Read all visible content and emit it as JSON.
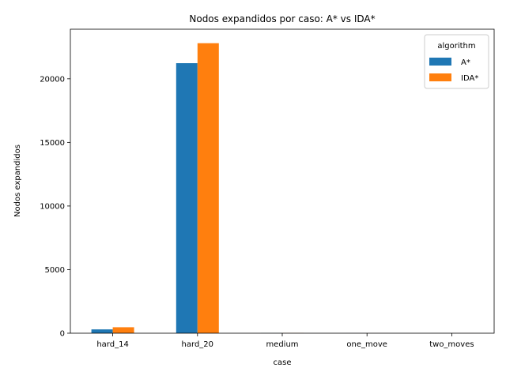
{
  "chart_data": {
    "type": "bar",
    "title": "Nodos expandidos por caso: A* vs IDA*",
    "xlabel": "case",
    "ylabel": "Nodos expandidos",
    "categories": [
      "hard_14",
      "hard_20",
      "medium",
      "one_move",
      "two_moves"
    ],
    "series": [
      {
        "name": "A*",
        "color": "#1f77b4",
        "values": [
          300,
          21230,
          10,
          1,
          2
        ]
      },
      {
        "name": "IDA*",
        "color": "#ff7f0e",
        "values": [
          470,
          22800,
          12,
          1,
          3
        ]
      }
    ],
    "ylim": [
      0,
      23900
    ],
    "yticks": [
      0,
      5000,
      10000,
      15000,
      20000
    ],
    "ytick_labels": [
      "0",
      "5000",
      "10000",
      "15000",
      "20000"
    ],
    "legend_title": "algorithm",
    "legend_position": "top-right",
    "grid": false
  }
}
